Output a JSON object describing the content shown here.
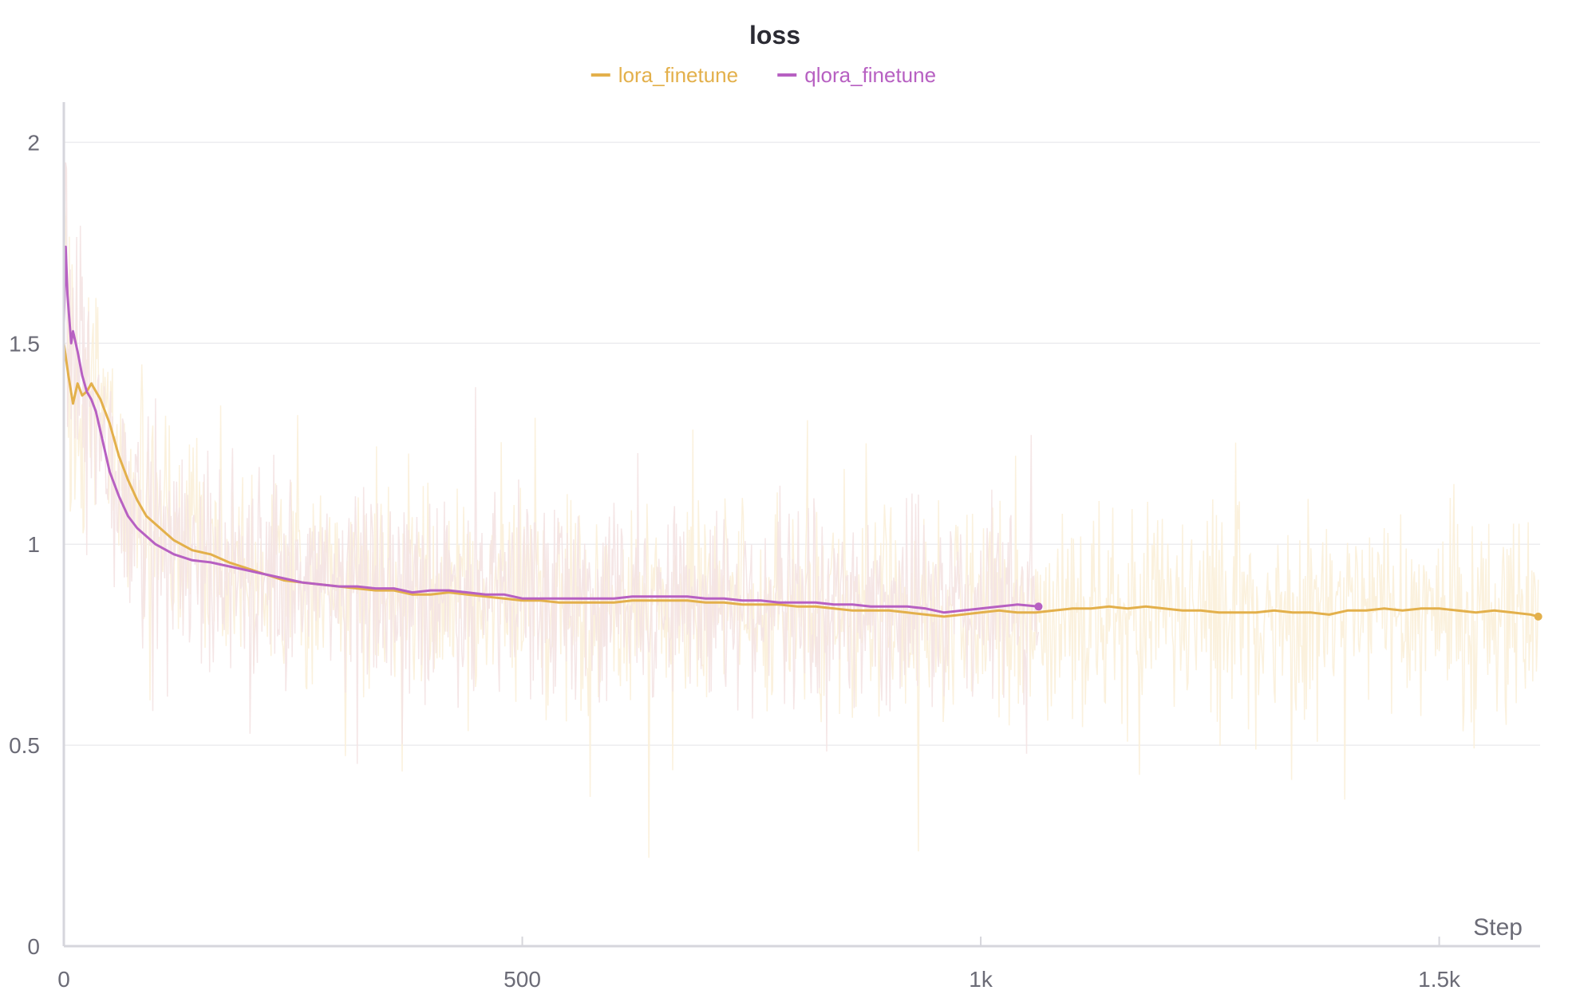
{
  "chart_data": {
    "type": "line",
    "title": "loss",
    "xlabel": "Step",
    "ylabel": "",
    "xlim": [
      0,
      1610
    ],
    "ylim": [
      0,
      2.1
    ],
    "x_ticks": [
      {
        "value": 0,
        "label": "0"
      },
      {
        "value": 500,
        "label": "500"
      },
      {
        "value": 1000,
        "label": "1k"
      },
      {
        "value": 1500,
        "label": "1.5k"
      }
    ],
    "y_ticks": [
      {
        "value": 0,
        "label": "0"
      },
      {
        "value": 0.5,
        "label": "0.5"
      },
      {
        "value": 1,
        "label": "1"
      },
      {
        "value": 1.5,
        "label": "1.5"
      },
      {
        "value": 2,
        "label": "2"
      }
    ],
    "grid": true,
    "legend_position": "top-center",
    "series": [
      {
        "name": "lora_finetune",
        "color": "#e3b04b",
        "raw_color": "#fbf0d9",
        "x": [
          0,
          5,
          10,
          15,
          20,
          25,
          30,
          40,
          50,
          60,
          70,
          80,
          90,
          100,
          120,
          140,
          160,
          180,
          200,
          220,
          240,
          260,
          280,
          300,
          320,
          340,
          360,
          380,
          400,
          420,
          440,
          460,
          480,
          500,
          520,
          540,
          560,
          580,
          600,
          620,
          640,
          660,
          680,
          700,
          720,
          740,
          760,
          780,
          800,
          820,
          840,
          860,
          880,
          900,
          920,
          940,
          960,
          980,
          1000,
          1020,
          1040,
          1060,
          1080,
          1100,
          1120,
          1140,
          1160,
          1180,
          1200,
          1220,
          1240,
          1260,
          1280,
          1300,
          1320,
          1340,
          1360,
          1380,
          1400,
          1420,
          1440,
          1460,
          1480,
          1500,
          1520,
          1540,
          1560,
          1580,
          1600,
          1608
        ],
        "y": [
          1.5,
          1.42,
          1.35,
          1.4,
          1.37,
          1.38,
          1.4,
          1.36,
          1.3,
          1.22,
          1.16,
          1.11,
          1.07,
          1.05,
          1.01,
          0.985,
          0.975,
          0.955,
          0.94,
          0.925,
          0.91,
          0.905,
          0.9,
          0.895,
          0.89,
          0.885,
          0.885,
          0.875,
          0.875,
          0.88,
          0.875,
          0.87,
          0.865,
          0.86,
          0.86,
          0.855,
          0.855,
          0.855,
          0.855,
          0.86,
          0.86,
          0.86,
          0.86,
          0.855,
          0.855,
          0.85,
          0.85,
          0.85,
          0.845,
          0.845,
          0.84,
          0.835,
          0.835,
          0.835,
          0.83,
          0.825,
          0.82,
          0.825,
          0.83,
          0.835,
          0.83,
          0.83,
          0.835,
          0.84,
          0.84,
          0.845,
          0.84,
          0.845,
          0.84,
          0.835,
          0.835,
          0.83,
          0.83,
          0.83,
          0.835,
          0.83,
          0.83,
          0.825,
          0.835,
          0.835,
          0.84,
          0.835,
          0.84,
          0.84,
          0.835,
          0.83,
          0.835,
          0.83,
          0.825,
          0.82
        ]
      },
      {
        "name": "qlora_finetune",
        "color": "#b760c2",
        "raw_color": "#f4e3e3",
        "x": [
          0,
          2,
          4,
          6,
          8,
          10,
          15,
          20,
          25,
          30,
          35,
          40,
          50,
          60,
          70,
          80,
          90,
          100,
          120,
          140,
          160,
          180,
          200,
          220,
          240,
          260,
          280,
          300,
          320,
          340,
          360,
          380,
          400,
          420,
          440,
          460,
          480,
          500,
          520,
          540,
          560,
          580,
          600,
          620,
          640,
          660,
          680,
          700,
          720,
          740,
          760,
          780,
          800,
          820,
          840,
          860,
          880,
          900,
          920,
          940,
          960,
          980,
          1000,
          1020,
          1040,
          1063
        ],
        "y": [
          1.55,
          1.74,
          1.62,
          1.56,
          1.5,
          1.53,
          1.48,
          1.42,
          1.38,
          1.36,
          1.33,
          1.28,
          1.18,
          1.12,
          1.07,
          1.04,
          1.02,
          1.0,
          0.975,
          0.96,
          0.955,
          0.945,
          0.935,
          0.925,
          0.915,
          0.905,
          0.9,
          0.895,
          0.895,
          0.89,
          0.89,
          0.88,
          0.885,
          0.885,
          0.88,
          0.875,
          0.875,
          0.865,
          0.865,
          0.865,
          0.865,
          0.865,
          0.865,
          0.87,
          0.87,
          0.87,
          0.87,
          0.865,
          0.865,
          0.86,
          0.86,
          0.855,
          0.855,
          0.855,
          0.85,
          0.85,
          0.845,
          0.845,
          0.845,
          0.84,
          0.83,
          0.835,
          0.84,
          0.845,
          0.85,
          0.845
        ]
      }
    ]
  }
}
